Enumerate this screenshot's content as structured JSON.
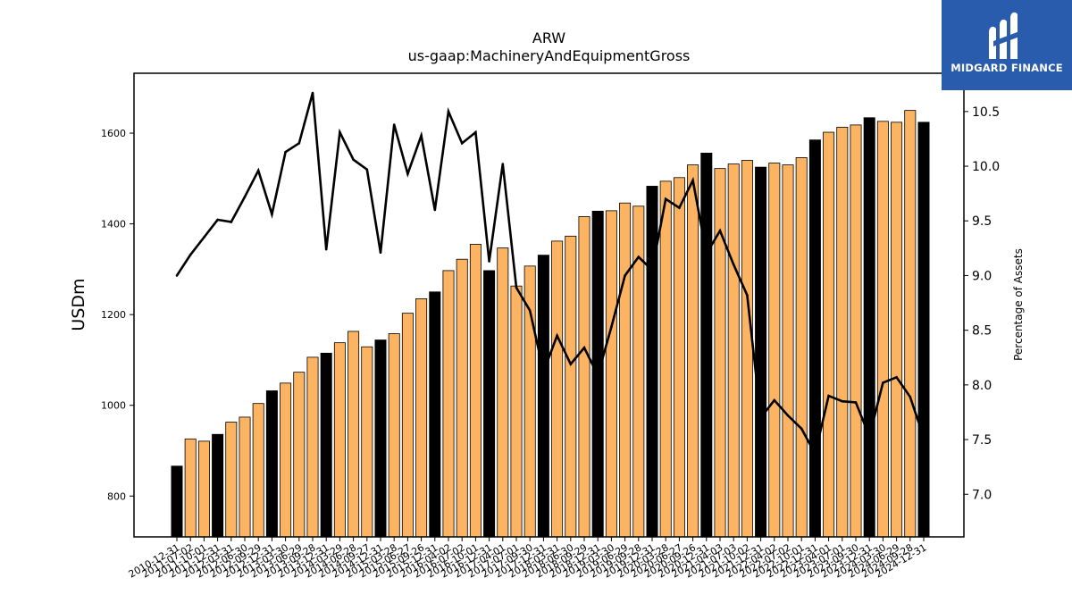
{
  "logo": {
    "text": "MIDGARD FINANCE"
  },
  "chart_data": {
    "type": "bar",
    "title": "ARW",
    "subtitle": "us-gaap:MachineryAndEquipmentGross",
    "ylabel": "USDm",
    "y2label": "Percentage of Assets",
    "ylim": [
      710,
      1732
    ],
    "y2lim": [
      6.61,
      10.85
    ],
    "yticks": [
      800,
      1000,
      1200,
      1400,
      1600
    ],
    "y2ticks": [
      7.0,
      7.5,
      8.0,
      8.5,
      9.0,
      9.5,
      10.0,
      10.5
    ],
    "categories": [
      "2010-12-31",
      "2011-07-02",
      "2011-10-01",
      "2011-12-31",
      "2012-03-31",
      "2012-06-30",
      "2012-09-29",
      "2012-12-31",
      "2013-03-30",
      "2013-06-29",
      "2013-09-28",
      "2013-12-31",
      "2014-03-29",
      "2014-06-28",
      "2014-09-27",
      "2014-12-31",
      "2015-03-28",
      "2015-06-27",
      "2015-09-26",
      "2015-12-31",
      "2016-04-02",
      "2016-07-02",
      "2016-10-01",
      "2016-12-31",
      "2017-04-01",
      "2017-07-01",
      "2017-09-30",
      "2017-12-31",
      "2018-03-31",
      "2018-06-30",
      "2018-09-29",
      "2018-12-31",
      "2019-03-30",
      "2019-06-29",
      "2019-09-28",
      "2019-12-31",
      "2020-03-28",
      "2020-06-27",
      "2020-09-26",
      "2020-12-31",
      "2021-04-03",
      "2021-07-03",
      "2021-10-02",
      "2021-12-31",
      "2022-04-02",
      "2022-07-02",
      "2022-10-01",
      "2022-12-31",
      "2023-04-01",
      "2023-07-01",
      "2023-09-30",
      "2023-12-31",
      "2024-03-30",
      "2024-06-29",
      "2024-09-28",
      "2024-12-31"
    ],
    "values": [
      866,
      926,
      921,
      936,
      963,
      974,
      1004,
      1032,
      1049,
      1073,
      1106,
      1115,
      1138,
      1163,
      1129,
      1144,
      1158,
      1203,
      1235,
      1250,
      1297,
      1322,
      1355,
      1297,
      1347,
      1263,
      1307,
      1331,
      1362,
      1373,
      1416,
      1428,
      1429,
      1446,
      1439,
      1483,
      1494,
      1502,
      1530,
      1556,
      1522,
      1532,
      1540,
      1525,
      1534,
      1530,
      1546,
      1585,
      1602,
      1613,
      1618,
      1634,
      1626,
      1624,
      1650,
      1624
    ],
    "highlight": [
      true,
      false,
      false,
      true,
      false,
      false,
      false,
      true,
      false,
      false,
      false,
      true,
      false,
      false,
      false,
      true,
      false,
      false,
      false,
      true,
      false,
      false,
      false,
      true,
      false,
      false,
      false,
      true,
      false,
      false,
      false,
      true,
      false,
      false,
      false,
      true,
      false,
      false,
      false,
      true,
      false,
      false,
      false,
      true,
      false,
      false,
      false,
      true,
      false,
      false,
      false,
      true,
      false,
      false,
      false,
      true
    ],
    "pct_assets": [
      9.0,
      9.19,
      9.35,
      9.51,
      9.49,
      9.72,
      9.96,
      9.56,
      10.13,
      10.21,
      10.67,
      9.24,
      10.31,
      10.06,
      9.97,
      9.21,
      10.38,
      9.93,
      10.28,
      9.6,
      10.5,
      10.21,
      10.31,
      9.13,
      10.02,
      8.89,
      8.68,
      8.12,
      8.45,
      8.19,
      8.34,
      8.09,
      8.53,
      9.0,
      9.17,
      9.05,
      9.7,
      9.62,
      9.87,
      9.2,
      9.41,
      9.1,
      8.82,
      7.7,
      7.86,
      7.72,
      7.6,
      7.37,
      7.9,
      7.85,
      7.84,
      7.53,
      8.02,
      8.07,
      7.89,
      7.52
    ],
    "colors": {
      "bar": "#fdb462",
      "bar_highlight": "#000000",
      "bar_edge": "#000000",
      "line": "#000000"
    }
  }
}
